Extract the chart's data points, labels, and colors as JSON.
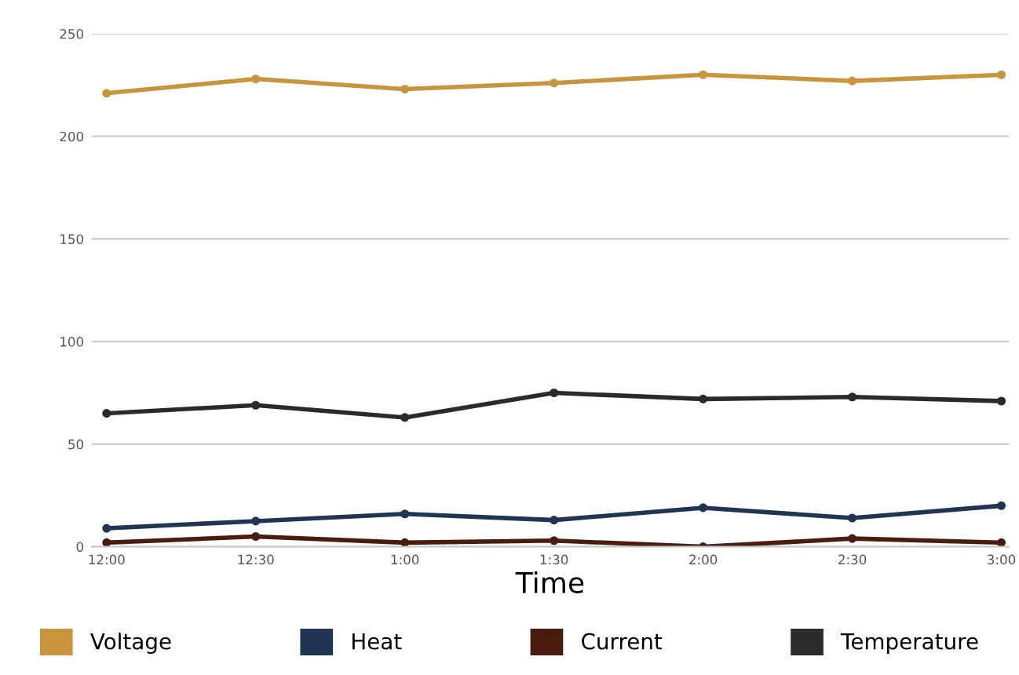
{
  "chart_data": {
    "type": "line",
    "xlabel": "Time",
    "categories": [
      "12:00",
      "12:30",
      "1:00",
      "1:30",
      "2:00",
      "2:30",
      "3:00"
    ],
    "series": [
      {
        "name": "Voltage",
        "color": "#c8943c",
        "values": [
          221,
          228,
          223,
          226,
          230,
          227,
          230
        ]
      },
      {
        "name": "Heat",
        "color": "#1f3553",
        "values": [
          9,
          12.5,
          16,
          13,
          19,
          14,
          20
        ]
      },
      {
        "name": "Current",
        "color": "#4a1c10",
        "values": [
          2,
          5,
          2,
          3,
          0,
          4,
          2
        ]
      },
      {
        "name": "Temperature",
        "color": "#2a2a2a",
        "values": [
          65,
          69,
          63,
          75,
          72,
          73,
          71
        ]
      }
    ],
    "ylim": [
      0,
      250
    ],
    "yticks": [
      0,
      50,
      100,
      150,
      200,
      250
    ],
    "grid": "y",
    "legend": "bottom",
    "marker": "circle",
    "line_style": "solid"
  }
}
